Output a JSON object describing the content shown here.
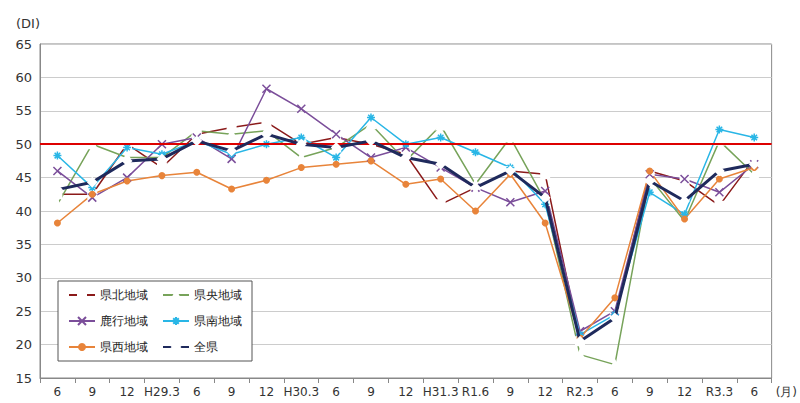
{
  "chart_data": {
    "type": "line",
    "x_label": "(月)",
    "y_label": "(DI)",
    "categories": [
      "6",
      "9",
      "12",
      "H29.3",
      "6",
      "9",
      "12",
      "H30.3",
      "6",
      "9",
      "12",
      "H31.3",
      "R1.6",
      "9",
      "12",
      "R2.3",
      "6",
      "9",
      "12",
      "R3.3",
      "6"
    ],
    "series": [
      {
        "name": "県北地域",
        "color": "#8b1a1a",
        "marker": "square",
        "values": [
          42.5,
          42.5,
          50,
          46.5,
          51.5,
          52.5,
          53.3,
          50,
          51,
          50,
          48.5,
          41,
          43.5,
          46,
          45.5,
          20.5,
          24,
          46,
          44.5,
          40.8,
          47.8
        ]
      },
      {
        "name": "県央地域",
        "color": "#77a35a",
        "marker": "triangle",
        "values": [
          41,
          50,
          48,
          48,
          52,
          51.5,
          52,
          48,
          49.5,
          53,
          47.5,
          52.8,
          44,
          51,
          41.5,
          18.5,
          17,
          45,
          38.5,
          50.5,
          45.5
        ]
      },
      {
        "name": "鹿行地域",
        "color": "#7b4e9a",
        "marker": "x",
        "values": [
          46,
          42,
          45,
          50,
          51,
          47.8,
          58.3,
          55.3,
          51.5,
          48,
          49.5,
          46.5,
          43.5,
          41.3,
          43,
          22,
          25,
          45.5,
          44.8,
          42.8,
          47
        ]
      },
      {
        "name": "県南地域",
        "color": "#29b6e6",
        "marker": "asterisk",
        "values": [
          48.3,
          43.5,
          49.5,
          48.5,
          50.5,
          48.5,
          50,
          51,
          48,
          54,
          50,
          51,
          48.8,
          46.5,
          41,
          21.5,
          24.5,
          42.8,
          39.5,
          52.2,
          51
        ]
      },
      {
        "name": "県西地域",
        "color": "#e8843a",
        "marker": "circle",
        "values": [
          38.2,
          42.5,
          44.5,
          45.3,
          45.8,
          43.3,
          44.6,
          46.5,
          47,
          47.5,
          44,
          44.8,
          40,
          45.5,
          38.2,
          21,
          27,
          46,
          38.8,
          44.8,
          46.5
        ]
      },
      {
        "name": "全県",
        "color": "#1f2a5c",
        "marker": "diamond",
        "values": [
          43.2,
          44.3,
          47.5,
          47.8,
          50.5,
          49,
          51.5,
          50,
          49.5,
          50.5,
          48,
          47,
          43.5,
          46,
          42,
          20.5,
          24,
          44.5,
          41.5,
          46,
          47
        ]
      }
    ],
    "reference_lines": [
      {
        "value": 50,
        "color": "#dd0000"
      }
    ],
    "ylim": [
      15,
      65
    ],
    "yticks": [
      15,
      20,
      25,
      30,
      35,
      40,
      45,
      50,
      55,
      60,
      65
    ],
    "grid": true,
    "legend": "lower left"
  }
}
